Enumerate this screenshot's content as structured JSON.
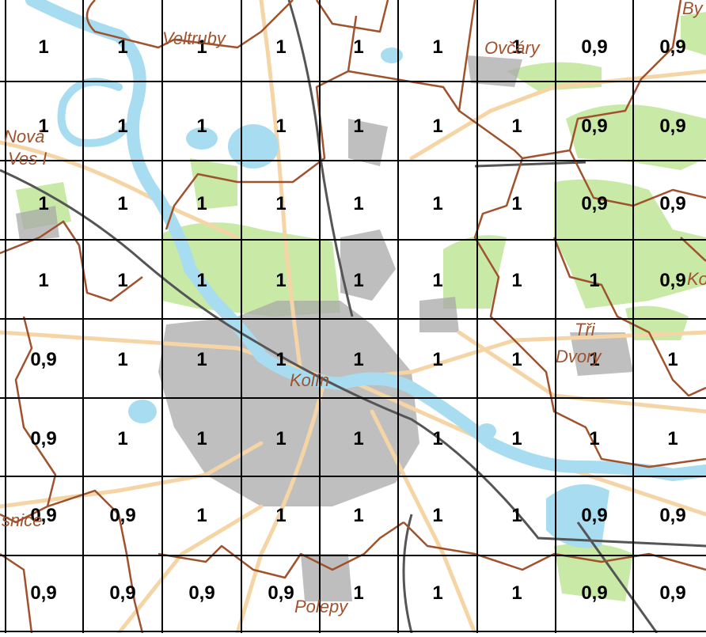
{
  "grid": {
    "rows": [
      [
        "1",
        "1",
        "1",
        "1",
        "1",
        "1",
        "1",
        "0,9",
        "0,9"
      ],
      [
        "1",
        "1",
        "1",
        "1",
        "1",
        "1",
        "1",
        "0,9",
        "0,9"
      ],
      [
        "1",
        "1",
        "1",
        "1",
        "1",
        "1",
        "1",
        "0,9",
        "0,9"
      ],
      [
        "1",
        "1",
        "1",
        "1",
        "1",
        "1",
        "1",
        "1",
        "0,9"
      ],
      [
        "0,9",
        "1",
        "1",
        "1",
        "1",
        "1",
        "1",
        "1",
        "1"
      ],
      [
        "0,9",
        "1",
        "1",
        "1",
        "1",
        "1",
        "1",
        "1",
        "1"
      ],
      [
        "0,9",
        "0,9",
        "1",
        "1",
        "1",
        "1",
        "1",
        "0,9",
        "0,9"
      ],
      [
        "0,9",
        "0,9",
        "0,9",
        "0,9",
        "1",
        "1",
        "1",
        "0,9",
        "0,9"
      ]
    ]
  },
  "places": {
    "veltruby": "Veltruby",
    "ovcary": "Ovčáry",
    "by": "By",
    "nova_1": "Nová",
    "nova_2": "Ves I",
    "ko": "Ko",
    "tri_1": "Tři",
    "tri_2": "Dvory",
    "kolin": "Kolín",
    "snice": "snice",
    "polepy": "Polepy"
  },
  "colors": {
    "boundary": "#a0522d",
    "water": "#a8dcf0",
    "forest": "#c8eaa6",
    "road": "#f5d5a6",
    "urban": "#a9a9a9",
    "grid": "#000000"
  }
}
